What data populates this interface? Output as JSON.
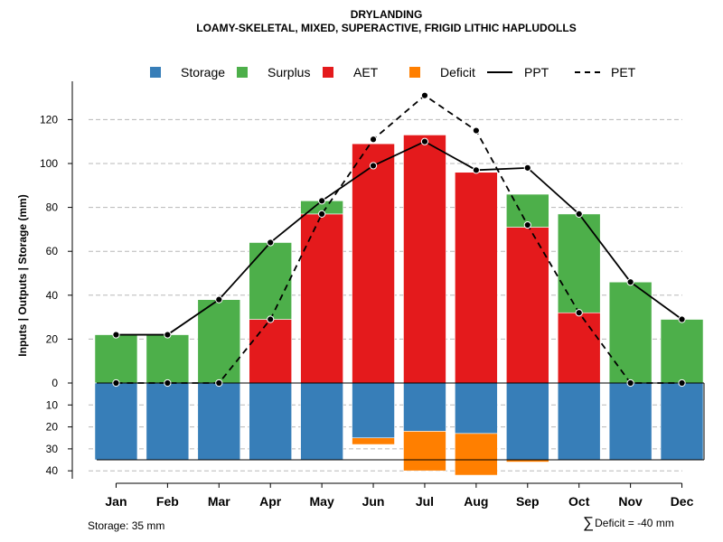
{
  "title": {
    "line1": "DRYLANDING",
    "line2": "LOAMY-SKELETAL, MIXED, SUPERACTIVE, FRIGID LITHIC HAPLUDOLLS"
  },
  "legend": [
    {
      "label": "Storage",
      "kind": "swatch",
      "color": "#377EB8"
    },
    {
      "label": "Surplus",
      "kind": "swatch",
      "color": "#4DAF4A"
    },
    {
      "label": "AET",
      "kind": "swatch",
      "color": "#E41A1C"
    },
    {
      "label": "Deficit",
      "kind": "swatch",
      "color": "#FF7F00"
    },
    {
      "label": "PPT",
      "kind": "line",
      "color": "#000000"
    },
    {
      "label": "PET",
      "kind": "dashed",
      "color": "#000000"
    }
  ],
  "footer": {
    "storage": "Storage: 35 mm",
    "deficit_symbol": "∑",
    "deficit": "Deficit = -40 mm"
  },
  "chart_data": {
    "type": "bar",
    "title": "DRYLANDING",
    "ylabel": "Inputs | Outputs | Storage    (mm)",
    "categories": [
      "Jan",
      "Feb",
      "Mar",
      "Apr",
      "May",
      "Jun",
      "Jul",
      "Aug",
      "Sep",
      "Oct",
      "Nov",
      "Dec"
    ],
    "ylim_top": [
      0,
      130
    ],
    "yticks_top": [
      0,
      20,
      40,
      60,
      80,
      100,
      120
    ],
    "ylim_bottom": [
      0,
      40
    ],
    "yticks_bottom": [
      0,
      10,
      20,
      30,
      40
    ],
    "storage_capacity": 35,
    "series": [
      {
        "name": "AET",
        "color": "#E41A1C",
        "values": [
          0,
          0,
          0,
          29,
          77,
          109,
          113,
          96,
          71,
          32,
          0,
          0
        ]
      },
      {
        "name": "Surplus",
        "color": "#4DAF4A",
        "values": [
          22,
          22,
          38,
          35,
          6,
          0,
          0,
          0,
          15,
          45,
          46,
          29
        ]
      },
      {
        "name": "Storage",
        "color": "#377EB8",
        "values": [
          35,
          35,
          35,
          35,
          35,
          25,
          22,
          23,
          35,
          35,
          35,
          35
        ]
      },
      {
        "name": "Deficit",
        "color": "#FF7F00",
        "values": [
          0,
          0,
          0,
          0,
          0,
          3,
          18,
          19,
          1,
          0,
          0,
          0
        ]
      },
      {
        "name": "PPT",
        "color": "#000000",
        "style": "solid",
        "values": [
          22,
          22,
          38,
          64,
          83,
          99,
          110,
          97,
          98,
          77,
          46,
          29
        ]
      },
      {
        "name": "PET",
        "color": "#000000",
        "style": "dashed",
        "values": [
          0,
          0,
          0,
          29,
          77,
          111,
          131,
          115,
          72,
          32,
          0,
          0
        ]
      }
    ]
  }
}
